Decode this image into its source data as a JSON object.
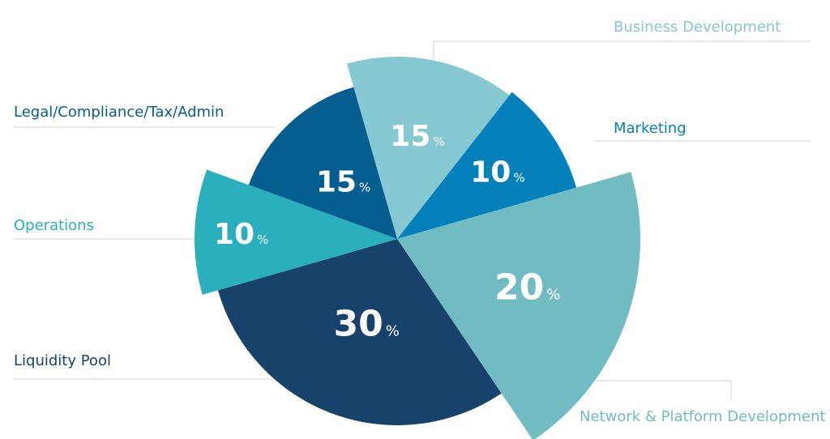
{
  "chart_data": {
    "type": "pie",
    "slices": [
      {
        "label": "Business Development",
        "value": 15,
        "color": "#86c9d2",
        "value_text": "15",
        "unit": "%"
      },
      {
        "label": "Marketing",
        "value": 10,
        "color": "#0481ba",
        "value_text": "10",
        "unit": "%"
      },
      {
        "label": "Network & Platform Development",
        "value": 20,
        "color": "#71bcc2",
        "value_text": "20",
        "unit": "%"
      },
      {
        "label": "Liquidity Pool",
        "value": 30,
        "color": "#16426c",
        "value_text": "30",
        "unit": "%"
      },
      {
        "label": "Operations",
        "value": 10,
        "color": "#2aafbd",
        "value_text": "10",
        "unit": "%"
      },
      {
        "label": "Legal/Compliance/Tax/Admin",
        "value": 15,
        "color": "#045e8f",
        "value_text": "15",
        "unit": "%"
      }
    ]
  }
}
